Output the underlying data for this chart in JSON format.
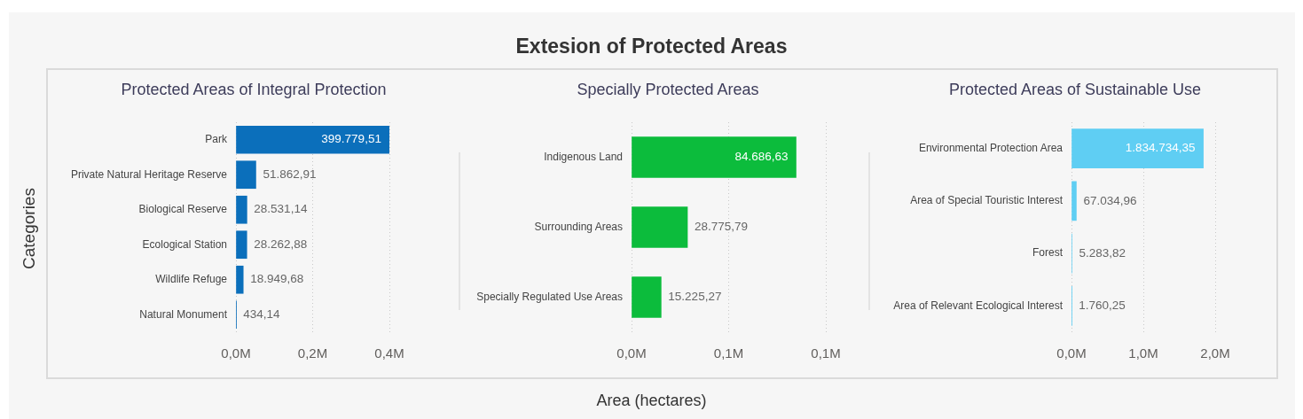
{
  "chart_data": [
    {
      "type": "other",
      "title": "Extesion of Protected Areas"
    },
    {
      "type": "bar",
      "orientation": "horizontal",
      "title": "Protected Areas of Integral Protection",
      "ylabel": "Categories",
      "categories": [
        "Park",
        "Private Natural Heritage Reserve",
        "Biological Reserve",
        "Ecological Station",
        "Wildlife Refuge",
        "Natural Monument"
      ],
      "values": [
        399779.51,
        51862.91,
        28531.14,
        28262.88,
        18949.68,
        434.14
      ],
      "value_labels": [
        "399.779,51",
        "51.862,91",
        "28.531,14",
        "28.262,88",
        "18.949,68",
        "434,14"
      ],
      "color": "#0b6fbb",
      "xlim": [
        0,
        400000
      ],
      "xticks": [
        {
          "value": 0,
          "label": "0,0M"
        },
        {
          "value": 200000,
          "label": "0,2M"
        },
        {
          "value": 400000,
          "label": "0,4M"
        }
      ],
      "grid": "x"
    },
    {
      "type": "bar",
      "orientation": "horizontal",
      "title": "Specially Protected Areas",
      "xlabel": "Area (hectares)",
      "categories": [
        "Indigenous Land",
        "Surrounding Areas",
        "Specially Regulated Use Areas"
      ],
      "values": [
        84686.63,
        28775.79,
        15225.27
      ],
      "value_labels": [
        "84.686,63",
        "28.775,79",
        "15.225,27"
      ],
      "color": "#0cbc3c",
      "xlim": [
        0,
        100000
      ],
      "xticks": [
        {
          "value": 0,
          "label": "0,0M"
        },
        {
          "value": 50000,
          "label": "0,1M"
        },
        {
          "value": 100000,
          "label": "0,1M"
        }
      ],
      "grid": "x"
    },
    {
      "type": "bar",
      "orientation": "horizontal",
      "title": "Protected Areas of Sustainable Use",
      "categories": [
        "Environmental Protection Area",
        "Area of Special Touristic Interest",
        "Forest",
        "Area of Relevant Ecological Interest"
      ],
      "values": [
        1834734.35,
        67034.96,
        5283.82,
        1760.25
      ],
      "value_labels": [
        "1.834.734,35",
        "67.034,96",
        "5.283,82",
        "1.760,25"
      ],
      "color": "#5fcef3",
      "xlim": [
        0,
        2000000
      ],
      "xticks": [
        {
          "value": 0,
          "label": "0,0M"
        },
        {
          "value": 1000000,
          "label": "1,0M"
        },
        {
          "value": 2000000,
          "label": "2,0M"
        }
      ],
      "grid": "x"
    }
  ]
}
